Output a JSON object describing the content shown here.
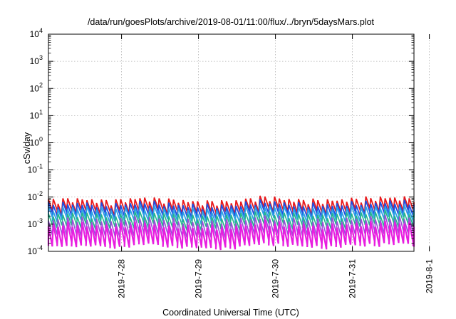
{
  "chart_data": {
    "type": "line",
    "title": "/data/run/goesPlots/archive/2019-08-01/11:00/flux/../bryn/5daysMars.plot",
    "xlabel": "Coordinated Universal Time (UTC)",
    "ylabel": "cSv/day",
    "yscale": "log",
    "ylim": [
      0.0001,
      10000
    ],
    "y_tick_exponents": [
      "-4",
      "-3",
      "-2",
      "-1",
      "0",
      "1",
      "2",
      "3",
      "4"
    ],
    "y_tick_base": "10",
    "x_range_days": [
      0,
      4.75
    ],
    "x_ticks": [
      {
        "label": "2019-7-28",
        "day": 0.95
      },
      {
        "label": "2019-7-29",
        "day": 1.95
      },
      {
        "label": "2019-7-30",
        "day": 2.95
      },
      {
        "label": "2019-7-31",
        "day": 3.95
      },
      {
        "label": "2019-8-1",
        "day": 4.95
      }
    ],
    "grid": true,
    "sawtooth": {
      "period_days": 0.0625,
      "note_free": true
    },
    "series": [
      {
        "color": "#e8191c",
        "peak_base": 0.0075,
        "ratio": 2.6,
        "width": 1.8
      },
      {
        "color": "#1f4fe0",
        "peak_base": 0.0052,
        "ratio": 2.5,
        "width": 1.8
      },
      {
        "color": "#2ea1e6",
        "peak_base": 0.0036,
        "ratio": 2.5,
        "width": 1.8
      },
      {
        "color": "#22b58c",
        "peak_base": 0.0022,
        "ratio": 2.6,
        "width": 1.6
      },
      {
        "color": "#9a50d8",
        "peak_base": 0.0014,
        "ratio": 3.4,
        "width": 1.6
      },
      {
        "color": "#e81ee0",
        "peak_base": 0.0009,
        "ratio": 5.5,
        "width": 2.2
      }
    ],
    "day_envelope": [
      {
        "day": 0.0,
        "f": 1.0
      },
      {
        "day": 0.4,
        "f": 1.1
      },
      {
        "day": 0.8,
        "f": 0.9
      },
      {
        "day": 1.2,
        "f": 1.2
      },
      {
        "day": 1.6,
        "f": 1.0
      },
      {
        "day": 2.0,
        "f": 0.85
      },
      {
        "day": 2.4,
        "f": 0.9
      },
      {
        "day": 2.8,
        "f": 1.3
      },
      {
        "day": 3.2,
        "f": 1.0
      },
      {
        "day": 3.6,
        "f": 0.95
      },
      {
        "day": 4.0,
        "f": 1.1
      },
      {
        "day": 4.4,
        "f": 1.25
      },
      {
        "day": 4.75,
        "f": 1.15
      }
    ]
  }
}
